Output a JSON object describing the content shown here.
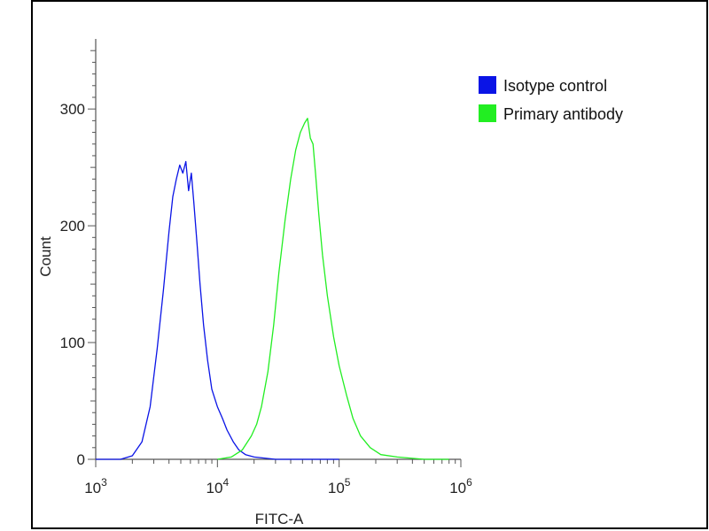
{
  "chart_data": {
    "type": "line",
    "xlabel": "FITC-A",
    "ylabel": "Count",
    "x_scale": "log",
    "xlim": [
      1000,
      1000000
    ],
    "ylim": [
      0,
      360
    ],
    "x_ticks": [
      {
        "value": 1000,
        "base": "10",
        "exp": "3"
      },
      {
        "value": 10000,
        "base": "10",
        "exp": "4"
      },
      {
        "value": 100000,
        "base": "10",
        "exp": "5"
      },
      {
        "value": 1000000,
        "base": "10",
        "exp": "6"
      }
    ],
    "y_ticks": [
      {
        "value": 0,
        "label": "0"
      },
      {
        "value": 100,
        "label": "100"
      },
      {
        "value": 200,
        "label": "200"
      },
      {
        "value": 300,
        "label": "300"
      }
    ],
    "legend_position": "top-right",
    "series": [
      {
        "name": "Isotype control",
        "color": "#0a14e6",
        "x": [
          1000,
          1600,
          2000,
          2400,
          2800,
          3200,
          3600,
          4000,
          4300,
          4600,
          4900,
          5200,
          5500,
          5800,
          6100,
          6400,
          6800,
          7200,
          7700,
          8300,
          9000,
          10000,
          11000,
          12000,
          13500,
          15000,
          17000,
          20000,
          30000,
          100000
        ],
        "y": [
          0,
          0,
          3,
          15,
          45,
          95,
          145,
          195,
          225,
          240,
          252,
          245,
          255,
          230,
          245,
          220,
          185,
          150,
          115,
          85,
          60,
          45,
          35,
          25,
          15,
          8,
          4,
          2,
          0,
          0
        ]
      },
      {
        "name": "Primary antibody",
        "color": "#22ee22",
        "x": [
          10000,
          13000,
          16000,
          19000,
          21000,
          23000,
          26000,
          29000,
          32000,
          36000,
          40000,
          44000,
          48000,
          52000,
          55000,
          58000,
          61000,
          64000,
          68000,
          73000,
          80000,
          90000,
          100000,
          115000,
          130000,
          150000,
          180000,
          220000,
          300000,
          500000,
          800000
        ],
        "y": [
          0,
          2,
          8,
          20,
          30,
          45,
          75,
          115,
          160,
          205,
          240,
          265,
          280,
          288,
          292,
          275,
          270,
          245,
          210,
          175,
          140,
          105,
          80,
          55,
          35,
          20,
          10,
          4,
          2,
          0,
          0
        ]
      }
    ]
  }
}
